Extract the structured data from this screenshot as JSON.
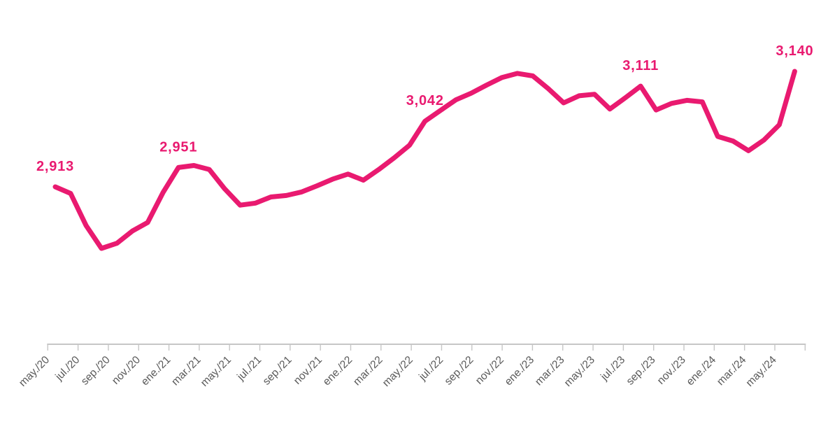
{
  "figure": {
    "background_color": "#FFFFFF"
  },
  "chart_data": {
    "type": "line",
    "title": "",
    "xlabel": "",
    "ylabel": "",
    "grid": "off",
    "legend": "none",
    "y_axis_visible": false,
    "x_unit": "month",
    "months_per_tick": 2,
    "x_range": [
      "may./20",
      "may./24"
    ],
    "x_tick_labels": [
      "may./20",
      "jul./20",
      "sep./20",
      "nov./20",
      "ene./21",
      "mar./21",
      "may./21",
      "jul./21",
      "sep./21",
      "nov./21",
      "ene./22",
      "mar./22",
      "may./22",
      "jul./22",
      "sep./22",
      "nov./22",
      "ene./23",
      "mar./23",
      "may./23",
      "jul./23",
      "sep./23",
      "nov./23",
      "ene./24",
      "mar./24",
      "may./24"
    ],
    "values": [
      2913,
      2900,
      2837,
      2792,
      2802,
      2826,
      2843,
      2902,
      2951,
      2955,
      2947,
      2909,
      2877,
      2881,
      2893,
      2896,
      2903,
      2915,
      2928,
      2938,
      2926,
      2947,
      2970,
      2995,
      3042,
      3063,
      3084,
      3097,
      3113,
      3128,
      3136,
      3131,
      3106,
      3078,
      3092,
      3095,
      3066,
      3088,
      3111,
      3064,
      3077,
      3083,
      3080,
      3012,
      3003,
      2984,
      3005,
      3035,
      3140
    ],
    "ylim": [
      2750,
      3200
    ],
    "point_labels": [
      {
        "index": 0,
        "text": "2,913"
      },
      {
        "index": 8,
        "text": "2,951"
      },
      {
        "index": 24,
        "text": "3,042"
      },
      {
        "index": 38,
        "text": "3,111"
      },
      {
        "index": 48,
        "text": "3,140"
      }
    ],
    "colors": {
      "line": "#E91A70",
      "point_label_text": "#E91A70",
      "axis_line": "#C6C6C6",
      "axis_tick": "#C6C6C6",
      "axis_label_text": "#595959"
    }
  }
}
